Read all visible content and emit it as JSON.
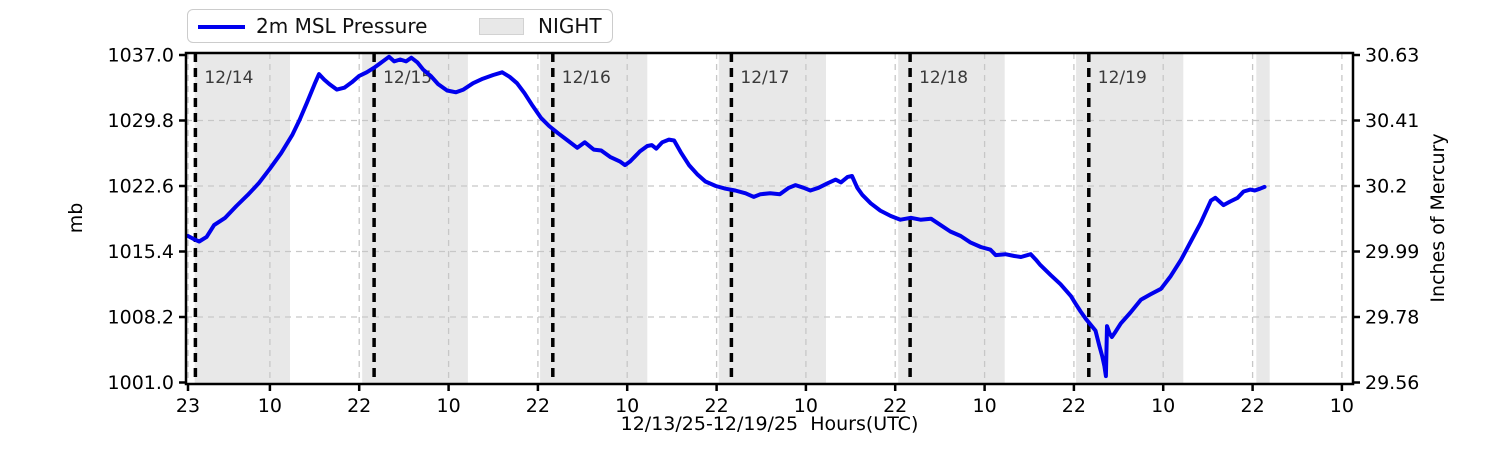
{
  "legend": {
    "series_label": "2m MSL Pressure",
    "night_label": "NIGHT"
  },
  "axes": {
    "xlabel": "12/13/25-12/19/25  Hours(UTC)",
    "ylabel_left": "mb",
    "ylabel_right": "Inches of Mercury"
  },
  "colors": {
    "line": "#0000ee",
    "night_fill": "#e8e8e8",
    "grid": "#c7c7c7",
    "date_line": "#000000",
    "date_label": "#3a3a3a",
    "tick_label": "#000000"
  },
  "chart_data": {
    "type": "line",
    "title": "",
    "xlabel": "12/13/25-12/19/25  Hours(UTC)",
    "ylabel_left": "mb",
    "ylabel_right": "Inches of Mercury",
    "x_unit_note": "hours since 12/13/25 23:00 UTC",
    "xlim_hours": [
      -0.27,
      156.5
    ],
    "ylim_mb": [
      1001.0,
      1037.0
    ],
    "ylim_inhg": [
      29.56,
      30.63
    ],
    "grid": "both, dashed",
    "legend_position": "top-left, above axes",
    "ytick_labels_mb": [
      "1037.0",
      "1029.8",
      "1022.6",
      "1015.4",
      "1008.2",
      "1001.0"
    ],
    "ytick_values_mb": [
      1037.0,
      1029.8,
      1022.6,
      1015.4,
      1008.2,
      1001.0
    ],
    "ytick_labels_inhg": [
      "30.63",
      "30.41",
      "30.2",
      "29.99",
      "29.78",
      "29.56"
    ],
    "xticks": [
      {
        "h": 0,
        "label": "23"
      },
      {
        "h": 11,
        "label": "10"
      },
      {
        "h": 23,
        "label": "22"
      },
      {
        "h": 35,
        "label": "10"
      },
      {
        "h": 47,
        "label": "22"
      },
      {
        "h": 59,
        "label": "10"
      },
      {
        "h": 71,
        "label": "22"
      },
      {
        "h": 83,
        "label": "10"
      },
      {
        "h": 95,
        "label": "22"
      },
      {
        "h": 107,
        "label": "10"
      },
      {
        "h": 119,
        "label": "22"
      },
      {
        "h": 131,
        "label": "10"
      },
      {
        "h": 143,
        "label": "22"
      },
      {
        "h": 155,
        "label": "10"
      }
    ],
    "date_lines": [
      {
        "h": 1,
        "label": "12/14"
      },
      {
        "h": 25,
        "label": "12/15"
      },
      {
        "h": 49,
        "label": "12/16"
      },
      {
        "h": 73,
        "label": "12/17"
      },
      {
        "h": 97,
        "label": "12/18"
      },
      {
        "h": 121,
        "label": "12/19"
      }
    ],
    "night_bands_hours": [
      [
        0.9,
        13.7
      ],
      [
        23.4,
        37.6
      ],
      [
        47.3,
        61.7
      ],
      [
        71.3,
        85.7
      ],
      [
        95.4,
        109.7
      ],
      [
        119.3,
        133.7
      ],
      [
        143.5,
        145.3
      ]
    ],
    "series": [
      {
        "name": "2m MSL Pressure",
        "units": "mb",
        "points": [
          [
            0,
            1017.1
          ],
          [
            0.7,
            1016.8
          ],
          [
            1.5,
            1016.5
          ],
          [
            2.5,
            1017.0
          ],
          [
            3.5,
            1018.3
          ],
          [
            5,
            1019.1
          ],
          [
            6.5,
            1020.4
          ],
          [
            8,
            1021.6
          ],
          [
            9.5,
            1022.9
          ],
          [
            11,
            1024.5
          ],
          [
            12.5,
            1026.2
          ],
          [
            14,
            1028.2
          ],
          [
            15,
            1029.9
          ],
          [
            16,
            1031.8
          ],
          [
            17,
            1033.8
          ],
          [
            17.6,
            1034.9
          ],
          [
            18.3,
            1034.3
          ],
          [
            19,
            1033.8
          ],
          [
            20,
            1033.2
          ],
          [
            21,
            1033.4
          ],
          [
            22,
            1034.0
          ],
          [
            23,
            1034.7
          ],
          [
            24,
            1035.1
          ],
          [
            25,
            1035.6
          ],
          [
            26,
            1036.2
          ],
          [
            27,
            1036.8
          ],
          [
            27.7,
            1036.3
          ],
          [
            28.5,
            1036.5
          ],
          [
            29.3,
            1036.3
          ],
          [
            30,
            1036.7
          ],
          [
            30.8,
            1036.2
          ],
          [
            31.6,
            1035.4
          ],
          [
            32.6,
            1034.7
          ],
          [
            33.6,
            1033.8
          ],
          [
            34.8,
            1033.1
          ],
          [
            36,
            1032.9
          ],
          [
            37,
            1033.2
          ],
          [
            38.3,
            1033.9
          ],
          [
            39.6,
            1034.4
          ],
          [
            41,
            1034.8
          ],
          [
            42.2,
            1035.1
          ],
          [
            43.2,
            1034.6
          ],
          [
            44.2,
            1033.9
          ],
          [
            45.2,
            1032.8
          ],
          [
            46.3,
            1031.4
          ],
          [
            47.4,
            1030.1
          ],
          [
            48.5,
            1029.2
          ],
          [
            49.7,
            1028.4
          ],
          [
            51,
            1027.6
          ],
          [
            52.3,
            1026.8
          ],
          [
            53.3,
            1027.4
          ],
          [
            54.5,
            1026.6
          ],
          [
            55.5,
            1026.5
          ],
          [
            56.7,
            1025.8
          ],
          [
            58,
            1025.3
          ],
          [
            58.7,
            1024.9
          ],
          [
            59.4,
            1025.3
          ],
          [
            60.7,
            1026.4
          ],
          [
            61.7,
            1027.0
          ],
          [
            62.3,
            1027.1
          ],
          [
            62.9,
            1026.7
          ],
          [
            63.7,
            1027.4
          ],
          [
            64.6,
            1027.7
          ],
          [
            65.3,
            1027.6
          ],
          [
            66.2,
            1026.3
          ],
          [
            67.3,
            1024.9
          ],
          [
            68.4,
            1023.9
          ],
          [
            69.5,
            1023.1
          ],
          [
            70.9,
            1022.6
          ],
          [
            72.2,
            1022.3
          ],
          [
            73.5,
            1022.1
          ],
          [
            74.9,
            1021.8
          ],
          [
            76,
            1021.4
          ],
          [
            76.9,
            1021.7
          ],
          [
            78.2,
            1021.8
          ],
          [
            79.5,
            1021.7
          ],
          [
            80.7,
            1022.4
          ],
          [
            81.6,
            1022.7
          ],
          [
            82.7,
            1022.4
          ],
          [
            83.6,
            1022.1
          ],
          [
            84.7,
            1022.4
          ],
          [
            85.9,
            1022.9
          ],
          [
            87,
            1023.3
          ],
          [
            87.7,
            1023.0
          ],
          [
            88.6,
            1023.6
          ],
          [
            89.2,
            1023.7
          ],
          [
            89.9,
            1022.4
          ],
          [
            90.6,
            1021.6
          ],
          [
            91.7,
            1020.7
          ],
          [
            93,
            1019.9
          ],
          [
            94.4,
            1019.3
          ],
          [
            95.7,
            1018.9
          ],
          [
            97.1,
            1019.1
          ],
          [
            98.4,
            1018.9
          ],
          [
            99.8,
            1019.0
          ],
          [
            101.1,
            1018.3
          ],
          [
            102.4,
            1017.6
          ],
          [
            103.8,
            1017.1
          ],
          [
            105.1,
            1016.4
          ],
          [
            106.5,
            1015.9
          ],
          [
            107.8,
            1015.6
          ],
          [
            108.5,
            1015.0
          ],
          [
            109.8,
            1015.1
          ],
          [
            111,
            1014.9
          ],
          [
            111.9,
            1014.8
          ],
          [
            113.2,
            1015.1
          ],
          [
            113.9,
            1014.5
          ],
          [
            114.5,
            1013.9
          ],
          [
            115.9,
            1012.8
          ],
          [
            117.2,
            1011.8
          ],
          [
            118.6,
            1010.5
          ],
          [
            119.2,
            1009.7
          ],
          [
            119.9,
            1008.8
          ],
          [
            120.6,
            1008.0
          ],
          [
            121.2,
            1007.4
          ],
          [
            121.9,
            1006.7
          ],
          [
            122.4,
            1005.1
          ],
          [
            122.8,
            1003.9
          ],
          [
            123.1,
            1002.8
          ],
          [
            123.3,
            1001.7
          ],
          [
            123.45,
            1007.2
          ],
          [
            123.8,
            1006.4
          ],
          [
            124.1,
            1006.0
          ],
          [
            124.6,
            1006.6
          ],
          [
            125.3,
            1007.5
          ],
          [
            126.6,
            1008.7
          ],
          [
            128,
            1010.1
          ],
          [
            129.3,
            1010.7
          ],
          [
            130.7,
            1011.3
          ],
          [
            132,
            1012.7
          ],
          [
            133.4,
            1014.5
          ],
          [
            134.7,
            1016.5
          ],
          [
            136,
            1018.5
          ],
          [
            137.4,
            1021.0
          ],
          [
            138,
            1021.3
          ],
          [
            139.1,
            1020.5
          ],
          [
            140,
            1020.9
          ],
          [
            141,
            1021.3
          ],
          [
            141.8,
            1022.0
          ],
          [
            142.7,
            1022.2
          ],
          [
            143.3,
            1022.1
          ],
          [
            144,
            1022.3
          ],
          [
            144.6,
            1022.5
          ]
        ]
      }
    ]
  }
}
